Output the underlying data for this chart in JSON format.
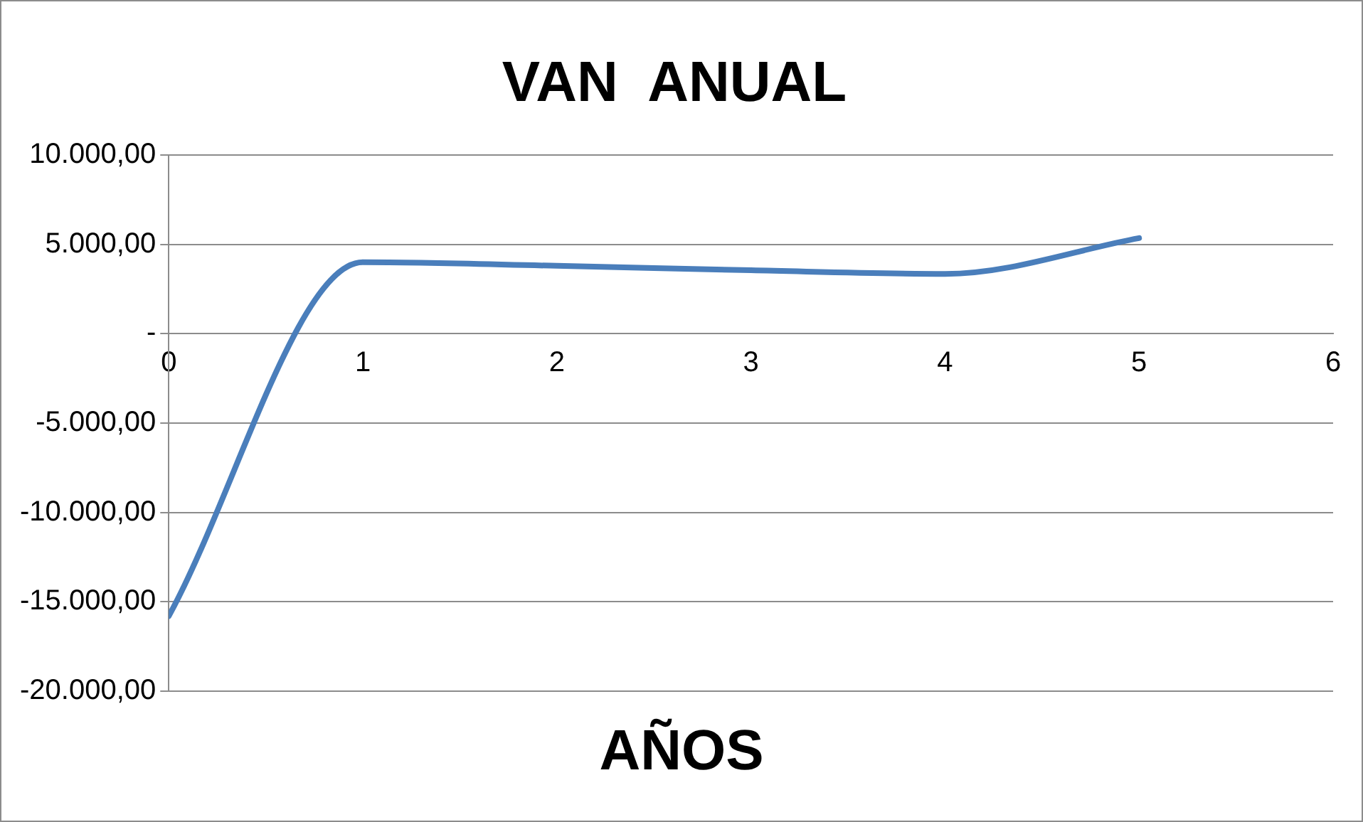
{
  "chart_data": {
    "type": "line",
    "title": "VAN  ANUAL",
    "xlabel": "AÑOS",
    "x": [
      0,
      1,
      2,
      3,
      4,
      5
    ],
    "series": [
      {
        "color": "#4a7ebb",
        "values": [
          -15800,
          4000,
          3800,
          3550,
          3350,
          5350
        ]
      }
    ],
    "xlim": [
      0,
      6
    ],
    "xticks": [
      0,
      1,
      2,
      3,
      4,
      5,
      6
    ],
    "ylim": [
      -20000,
      10000
    ],
    "yticks": [
      {
        "value": -20000,
        "label": "-20.000,00"
      },
      {
        "value": -15000,
        "label": "-15.000,00"
      },
      {
        "value": -10000,
        "label": "-10.000,00"
      },
      {
        "value": -5000,
        "label": "-5.000,00"
      },
      {
        "value": 0,
        "label": "-"
      },
      {
        "value": 5000,
        "label": "5.000,00"
      },
      {
        "value": 10000,
        "label": "10.000,00"
      }
    ],
    "grid": "y",
    "legend": false,
    "marker": "none",
    "line_style": "solid"
  }
}
